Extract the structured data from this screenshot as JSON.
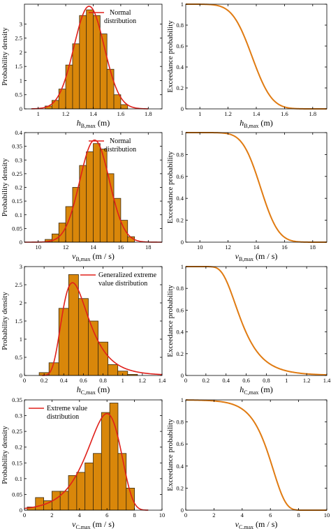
{
  "colors": {
    "bar_fill": "#d9870a",
    "bar_edge": "#3a2a10",
    "fit_line": "#e0201b",
    "exceed_line": "#e07b12",
    "axis": "#000000"
  },
  "chart_data": [
    {
      "type": "bar",
      "panel": "hist-hB",
      "xlabel_main": "h",
      "xlabel_sub": "B,max",
      "xlabel_unit": "(m)",
      "ylabel": "Probability density",
      "xlim": [
        0.9,
        1.9
      ],
      "ylim": [
        0,
        3.7
      ],
      "xticks": [
        "1",
        "1.2",
        "1.4",
        "1.6",
        "1.8"
      ],
      "xtick_values": [
        1,
        1.2,
        1.4,
        1.6,
        1.8
      ],
      "yticks": [
        "0",
        "0.5",
        "1",
        "1.5",
        "2",
        "2.5",
        "3"
      ],
      "ytick_values": [
        0,
        0.5,
        1,
        1.5,
        2,
        2.5,
        3
      ],
      "legend_lines": [
        "Normal",
        "distribution"
      ],
      "bin_edges": [
        1.05,
        1.1,
        1.15,
        1.2,
        1.25,
        1.3,
        1.35,
        1.4,
        1.45,
        1.5,
        1.55,
        1.6,
        1.65
      ],
      "values": [
        0.1,
        0.3,
        0.7,
        1.55,
        2.3,
        3.3,
        3.5,
        3.3,
        2.65,
        1.4,
        0.5,
        0.15
      ],
      "fit": {
        "kind": "normal",
        "mu": 1.37,
        "sigma": 0.11,
        "scale": 1.0,
        "range": [
          0.95,
          1.8
        ]
      }
    },
    {
      "type": "line",
      "panel": "exc-hB",
      "xlabel_main": "h",
      "xlabel_sub": "B,max",
      "xlabel_unit": "(m)",
      "ylabel": "Exceedance probability",
      "xlim": [
        0.9,
        1.9
      ],
      "ylim": [
        0,
        1
      ],
      "xticks": [
        "1",
        "1.2",
        "1.4",
        "1.6",
        "1.8"
      ],
      "xtick_values": [
        1,
        1.2,
        1.4,
        1.6,
        1.8
      ],
      "yticks": [
        "0",
        "0.2",
        "0.4",
        "0.6",
        "0.8",
        "1"
      ],
      "ytick_values": [
        0,
        0.2,
        0.4,
        0.6,
        0.8,
        1
      ],
      "curve": {
        "kind": "normal_sf",
        "mu": 1.37,
        "sigma": 0.11,
        "range": [
          0.9,
          1.9
        ]
      }
    },
    {
      "type": "bar",
      "panel": "hist-vB",
      "xlabel_main": "v",
      "xlabel_sub": "B,max",
      "xlabel_unit": "(m / s)",
      "ylabel": "Probability density",
      "xlim": [
        9,
        19
      ],
      "ylim": [
        0,
        0.4
      ],
      "xticks": [
        "10",
        "12",
        "14",
        "16",
        "18"
      ],
      "xtick_values": [
        10,
        12,
        14,
        16,
        18
      ],
      "yticks": [
        "0",
        "0.05",
        "0.1",
        "0.15",
        "0.2",
        "0.25",
        "0.3",
        "0.35",
        "0.4"
      ],
      "ytick_values": [
        0,
        0.05,
        0.1,
        0.15,
        0.2,
        0.25,
        0.3,
        0.35,
        0.4
      ],
      "legend_lines": [
        "Normal",
        "distribution"
      ],
      "bin_edges": [
        10.5,
        11,
        11.5,
        12,
        12.5,
        13,
        13.5,
        14,
        14.5,
        15,
        15.5,
        16,
        16.5,
        17
      ],
      "values": [
        0.01,
        0.03,
        0.07,
        0.13,
        0.2,
        0.28,
        0.33,
        0.36,
        0.34,
        0.25,
        0.16,
        0.08,
        0.02
      ],
      "fit": {
        "kind": "normal",
        "mu": 14.1,
        "sigma": 1.07,
        "scale": 1.0,
        "range": [
          9,
          19
        ]
      }
    },
    {
      "type": "line",
      "panel": "exc-vB",
      "xlabel_main": "v",
      "xlabel_sub": "B,max",
      "xlabel_unit": "(m / s)",
      "ylabel": "Exceedance probability",
      "xlim": [
        9,
        19
      ],
      "ylim": [
        0,
        1
      ],
      "xticks": [
        "10",
        "12",
        "14",
        "16",
        "18"
      ],
      "xtick_values": [
        10,
        12,
        14,
        16,
        18
      ],
      "yticks": [
        "0",
        "0.2",
        "0.4",
        "0.6",
        "0.8",
        "1"
      ],
      "ytick_values": [
        0,
        0.2,
        0.4,
        0.6,
        0.8,
        1
      ],
      "curve": {
        "kind": "normal_sf",
        "mu": 14.3,
        "sigma": 1.0,
        "range": [
          9,
          19
        ]
      }
    },
    {
      "type": "bar",
      "panel": "hist-hC",
      "xlabel_main": "h",
      "xlabel_sub": "C,max",
      "xlabel_unit": "(m)",
      "ylabel": "Probability density",
      "xlim": [
        0,
        1.4
      ],
      "ylim": [
        0,
        3
      ],
      "xticks": [
        "0",
        "0.2",
        "0.4",
        "0.6",
        "0.8",
        "1",
        "1.2",
        "1.4"
      ],
      "xtick_values": [
        0,
        0.2,
        0.4,
        0.6,
        0.8,
        1,
        1.2,
        1.4
      ],
      "yticks": [
        "0",
        "0.5",
        "1",
        "1.5",
        "2",
        "2.5",
        "3"
      ],
      "ytick_values": [
        0,
        0.5,
        1,
        1.5,
        2,
        2.5,
        3
      ],
      "legend_lines": [
        "Generalized extreme",
        "value distribution"
      ],
      "bin_edges": [
        0.15,
        0.25,
        0.35,
        0.45,
        0.55,
        0.65,
        0.75,
        0.85,
        0.95,
        1.05,
        1.15
      ],
      "values": [
        0.08,
        0.35,
        1.85,
        2.78,
        2.12,
        1.5,
        0.92,
        0.3,
        0.12,
        0.03
      ],
      "fit": {
        "kind": "gev_shape",
        "range": [
          0.18,
          1.4
        ]
      }
    },
    {
      "type": "line",
      "panel": "exc-hC",
      "xlabel_main": "h",
      "xlabel_sub": "C,max",
      "xlabel_unit": "(m)",
      "ylabel": "Exceedance probability",
      "xlim": [
        0,
        1.4
      ],
      "ylim": [
        0,
        1
      ],
      "xticks": [
        "0",
        "0.2",
        "0.4",
        "0.6",
        "0.8",
        "1",
        "1.2",
        "1.4"
      ],
      "xtick_values": [
        0,
        0.2,
        0.4,
        0.6,
        0.8,
        1,
        1.2,
        1.4
      ],
      "yticks": [
        "0",
        "0.2",
        "0.4",
        "0.6",
        "0.8",
        "1"
      ],
      "ytick_values": [
        0,
        0.2,
        0.4,
        0.6,
        0.8,
        1
      ],
      "curve": {
        "kind": "gev_sf",
        "range": [
          0,
          1.4
        ]
      }
    },
    {
      "type": "bar",
      "panel": "hist-vC",
      "xlabel_main": "v",
      "xlabel_sub": "C,max",
      "xlabel_unit": "(m / s)",
      "ylabel": "Probability density",
      "xlim": [
        0,
        10
      ],
      "ylim": [
        0,
        0.35
      ],
      "xticks": [
        "0",
        "2",
        "4",
        "6",
        "8",
        "10"
      ],
      "xtick_values": [
        0,
        2,
        4,
        6,
        8,
        10
      ],
      "yticks": [
        "0",
        "0.05",
        "0.1",
        "0.15",
        "0.2",
        "0.25",
        "0.3",
        "0.35"
      ],
      "ytick_values": [
        0,
        0.05,
        0.1,
        0.15,
        0.2,
        0.25,
        0.3,
        0.35
      ],
      "legend_lines": [
        "Extreme value",
        "distribution"
      ],
      "bin_edges": [
        0.2,
        0.8,
        1.4,
        2.0,
        2.6,
        3.2,
        3.8,
        4.4,
        5.0,
        5.6,
        6.2,
        6.8,
        7.4,
        8.0
      ],
      "values": [
        0.01,
        0.04,
        0.03,
        0.06,
        0.06,
        0.11,
        0.12,
        0.15,
        0.18,
        0.31,
        0.34,
        0.18,
        0.07
      ],
      "fit": {
        "kind": "gumbel_min",
        "mu": 6.0,
        "beta": 1.2,
        "range": [
          0,
          9
        ]
      }
    },
    {
      "type": "line",
      "panel": "exc-vC",
      "xlabel_main": "v",
      "xlabel_sub": "C,max",
      "xlabel_unit": "(m / s)",
      "ylabel": "Exceedance probability",
      "xlim": [
        0,
        10
      ],
      "ylim": [
        0,
        1
      ],
      "xticks": [
        "0",
        "2",
        "4",
        "6",
        "8",
        "10"
      ],
      "xtick_values": [
        0,
        2,
        4,
        6,
        8,
        10
      ],
      "yticks": [
        "0",
        "0.2",
        "0.4",
        "0.6",
        "0.8",
        "1"
      ],
      "ytick_values": [
        0,
        0.2,
        0.4,
        0.6,
        0.8,
        1
      ],
      "curve": {
        "kind": "gumbel_min_sf",
        "mu": 6.2,
        "beta": 0.9,
        "range": [
          0,
          10
        ]
      }
    }
  ]
}
